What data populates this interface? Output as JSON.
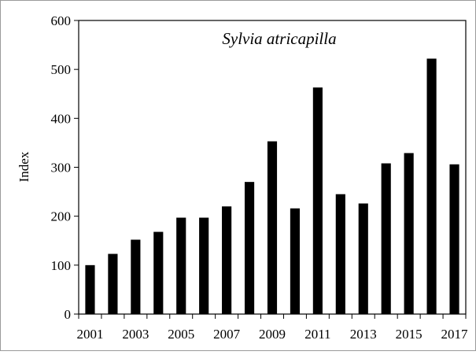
{
  "chart_data": {
    "type": "bar",
    "title": "Sylvia atricapilla",
    "xlabel": "",
    "ylabel": "Index",
    "ylim": [
      0,
      600
    ],
    "yticks": [
      "0",
      "100",
      "200",
      "300",
      "400",
      "500",
      "600"
    ],
    "categories": [
      "2001",
      "2002",
      "2003",
      "2004",
      "2005",
      "2006",
      "2007",
      "2008",
      "2009",
      "2010",
      "2011",
      "2012",
      "2013",
      "2014",
      "2015",
      "2016",
      "2017"
    ],
    "xtick_labels": [
      "2001",
      "",
      "2003",
      "",
      "2005",
      "",
      "2007",
      "",
      "2009",
      "",
      "2011",
      "",
      "2013",
      "",
      "2015",
      "",
      "2017"
    ],
    "values": [
      100,
      123,
      152,
      168,
      197,
      197,
      220,
      270,
      353,
      216,
      463,
      245,
      226,
      308,
      329,
      522,
      306
    ],
    "grid": false,
    "bar_color": "#000000"
  }
}
